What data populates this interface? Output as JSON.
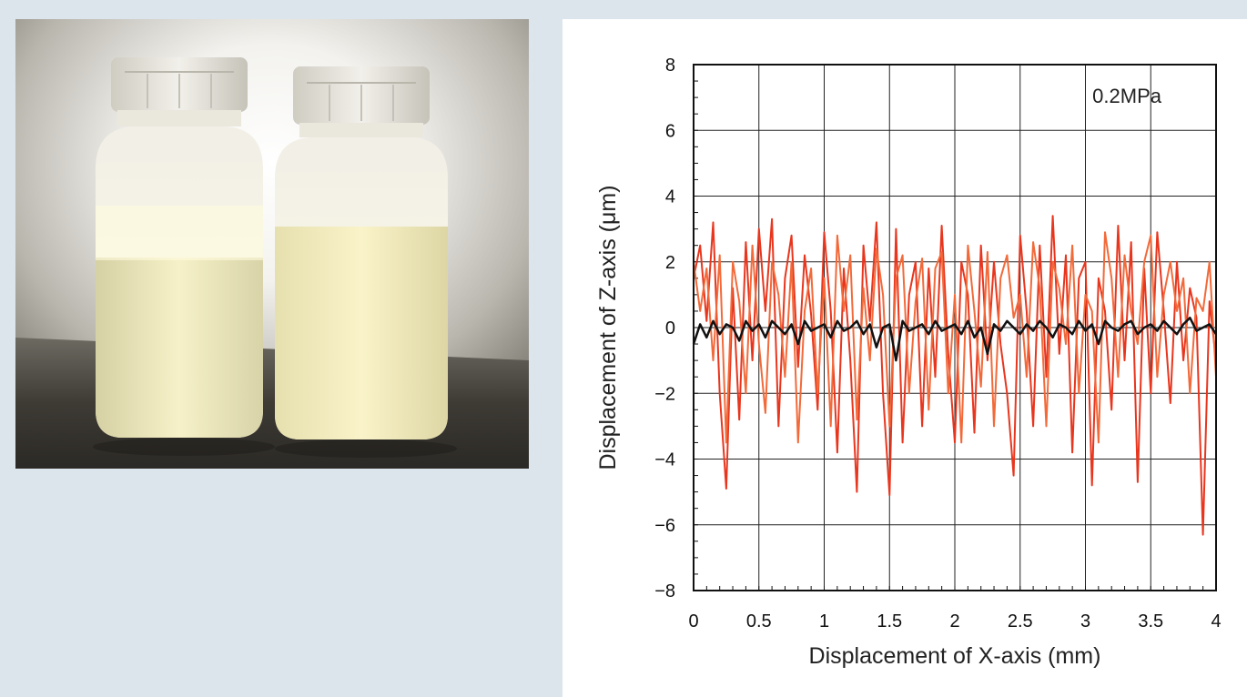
{
  "photo": {
    "subject": "two translucent plastic bottles of milky yellow-white liquid, backlit",
    "colors": {
      "liquid": "#f4eec0",
      "cap": "#e9e6dc",
      "background_glow": "#ffffff",
      "table": "#4a4740"
    }
  },
  "chart_data": {
    "type": "line",
    "title": "",
    "annotation": "0.2MPa",
    "xlabel": "Displacement of X-axis (mm)",
    "ylabel": "Displacement of Z-axis (μm)",
    "xlim": [
      0,
      4
    ],
    "ylim": [
      -8,
      8
    ],
    "xticks": [
      0,
      0.5,
      1,
      1.5,
      2,
      2.5,
      3,
      3.5,
      4
    ],
    "xtick_labels": [
      "0",
      "0.5",
      "1",
      "1.5",
      "2",
      "2.5",
      "3",
      "3.5",
      "4"
    ],
    "yticks": [
      -8,
      -6,
      -4,
      -2,
      0,
      2,
      4,
      6,
      8
    ],
    "ytick_labels": [
      "−8",
      "−6",
      "−4",
      "−2",
      "0",
      "2",
      "4",
      "6",
      "8"
    ],
    "grid": true,
    "series": [
      {
        "color": "#e8361e",
        "x": [
          0,
          0.05,
          0.1,
          0.15,
          0.2,
          0.25,
          0.3,
          0.35,
          0.4,
          0.45,
          0.5,
          0.55,
          0.6,
          0.65,
          0.7,
          0.75,
          0.8,
          0.85,
          0.9,
          0.95,
          1.0,
          1.05,
          1.1,
          1.15,
          1.2,
          1.25,
          1.3,
          1.35,
          1.4,
          1.45,
          1.5,
          1.55,
          1.6,
          1.65,
          1.7,
          1.75,
          1.8,
          1.85,
          1.9,
          1.95,
          2.0,
          2.05,
          2.1,
          2.15,
          2.2,
          2.25,
          2.3,
          2.35,
          2.4,
          2.45,
          2.5,
          2.55,
          2.6,
          2.65,
          2.7,
          2.75,
          2.8,
          2.85,
          2.9,
          2.95,
          3.0,
          3.05,
          3.1,
          3.15,
          3.2,
          3.25,
          3.3,
          3.35,
          3.4,
          3.45,
          3.5,
          3.55,
          3.6,
          3.65,
          3.7,
          3.75,
          3.8,
          3.85,
          3.9,
          3.95,
          4.0
        ],
        "y": [
          1.5,
          2.5,
          0.2,
          3.2,
          -2.0,
          -4.9,
          1.2,
          -2.8,
          2.6,
          -1.0,
          3.0,
          0.5,
          3.3,
          -3.0,
          1.5,
          2.8,
          -1.2,
          2.2,
          0.4,
          -2.5,
          2.9,
          0.5,
          -3.8,
          1.8,
          -1.0,
          -5.0,
          2.5,
          0.2,
          3.2,
          -2.0,
          -5.1,
          3.0,
          -3.5,
          1.0,
          2.0,
          -3.0,
          1.8,
          -1.5,
          3.1,
          -0.8,
          -3.5,
          2.0,
          1.0,
          -3.2,
          2.5,
          -1.0,
          2.0,
          -0.5,
          -2.0,
          -4.5,
          2.8,
          0.5,
          -3.0,
          2.5,
          -1.5,
          3.4,
          -0.8,
          2.2,
          -3.8,
          1.5,
          2.0,
          -4.8,
          1.5,
          0.5,
          -2.5,
          3.1,
          -1.0,
          2.6,
          -4.7,
          1.8,
          -2.0,
          2.9,
          0.5,
          -2.3,
          2.0,
          -1.0,
          1.2,
          0.3,
          -6.3,
          0.8,
          -1.0
        ]
      },
      {
        "color": "#111111",
        "x": [
          0,
          0.05,
          0.1,
          0.15,
          0.2,
          0.25,
          0.3,
          0.35,
          0.4,
          0.45,
          0.5,
          0.55,
          0.6,
          0.65,
          0.7,
          0.75,
          0.8,
          0.85,
          0.9,
          0.95,
          1.0,
          1.05,
          1.1,
          1.15,
          1.2,
          1.25,
          1.3,
          1.35,
          1.4,
          1.45,
          1.5,
          1.55,
          1.6,
          1.65,
          1.7,
          1.75,
          1.8,
          1.85,
          1.9,
          1.95,
          2.0,
          2.05,
          2.1,
          2.15,
          2.2,
          2.25,
          2.3,
          2.35,
          2.4,
          2.45,
          2.5,
          2.55,
          2.6,
          2.65,
          2.7,
          2.75,
          2.8,
          2.85,
          2.9,
          2.95,
          3.0,
          3.05,
          3.1,
          3.15,
          3.2,
          3.25,
          3.3,
          3.35,
          3.4,
          3.45,
          3.5,
          3.55,
          3.6,
          3.65,
          3.7,
          3.75,
          3.8,
          3.85,
          3.9,
          3.95,
          4.0
        ],
        "y": [
          -0.5,
          0.1,
          -0.3,
          0.2,
          -0.2,
          0.1,
          0.0,
          -0.4,
          0.2,
          -0.1,
          0.1,
          -0.3,
          0.2,
          0.0,
          -0.2,
          0.1,
          -0.5,
          0.2,
          -0.1,
          0.0,
          0.1,
          -0.3,
          0.2,
          -0.1,
          0.0,
          0.2,
          -0.2,
          0.1,
          -0.6,
          0.0,
          0.1,
          -1.0,
          0.2,
          -0.1,
          0.0,
          0.1,
          -0.2,
          0.2,
          -0.1,
          0.0,
          0.1,
          -0.2,
          0.2,
          -0.3,
          0.0,
          -0.8,
          0.1,
          -0.1,
          0.2,
          0.0,
          -0.2,
          0.1,
          -0.1,
          0.2,
          0.0,
          -0.3,
          0.1,
          0.0,
          -0.2,
          0.2,
          -0.1,
          0.1,
          -0.5,
          0.2,
          0.0,
          -0.1,
          0.1,
          0.2,
          -0.2,
          0.0,
          0.1,
          -0.1,
          0.2,
          0.0,
          -0.2,
          0.1,
          0.3,
          -0.1,
          0.0,
          0.1,
          -0.2
        ]
      },
      {
        "color": "#f26a3a",
        "x": [
          0,
          0.05,
          0.1,
          0.15,
          0.2,
          0.25,
          0.3,
          0.35,
          0.4,
          0.45,
          0.5,
          0.55,
          0.6,
          0.65,
          0.7,
          0.75,
          0.8,
          0.85,
          0.9,
          0.95,
          1.0,
          1.05,
          1.1,
          1.15,
          1.2,
          1.25,
          1.3,
          1.35,
          1.4,
          1.45,
          1.5,
          1.55,
          1.6,
          1.65,
          1.7,
          1.75,
          1.8,
          1.85,
          1.9,
          1.95,
          2.0,
          2.05,
          2.1,
          2.15,
          2.2,
          2.25,
          2.3,
          2.35,
          2.4,
          2.45,
          2.5,
          2.55,
          2.6,
          2.65,
          2.7,
          2.75,
          2.8,
          2.85,
          2.9,
          2.95,
          3.0,
          3.05,
          3.1,
          3.15,
          3.2,
          3.25,
          3.3,
          3.35,
          3.4,
          3.45,
          3.5,
          3.55,
          3.6,
          3.65,
          3.7,
          3.75,
          3.8,
          3.85,
          3.9,
          3.95,
          4.0
        ],
        "y": [
          2.0,
          0.5,
          1.8,
          -1.0,
          2.2,
          -3.5,
          2.0,
          0.8,
          -2.0,
          2.5,
          -0.5,
          -2.6,
          2.0,
          1.0,
          -1.5,
          2.0,
          -3.5,
          0.5,
          1.8,
          -2.0,
          1.5,
          -3.0,
          2.8,
          0.5,
          2.2,
          -2.8,
          1.2,
          -1.0,
          2.4,
          1.0,
          -3.0,
          1.5,
          2.2,
          -2.0,
          0.8,
          2.1,
          -2.5,
          1.8,
          2.3,
          -2.0,
          1.0,
          -3.5,
          2.5,
          0.5,
          -1.8,
          2.3,
          -3.0,
          1.5,
          2.2,
          0.3,
          1.0,
          -1.5,
          2.6,
          1.2,
          -3.0,
          2.0,
          1.2,
          -0.5,
          2.5,
          -2.0,
          1.0,
          0.5,
          -3.5,
          2.9,
          1.5,
          -1.5,
          2.2,
          0.5,
          -0.5,
          2.0,
          2.8,
          -1.5,
          1.0,
          2.0,
          0.5,
          1.5,
          -2.0,
          0.9,
          0.5,
          2.0,
          -1.5
        ]
      }
    ]
  }
}
